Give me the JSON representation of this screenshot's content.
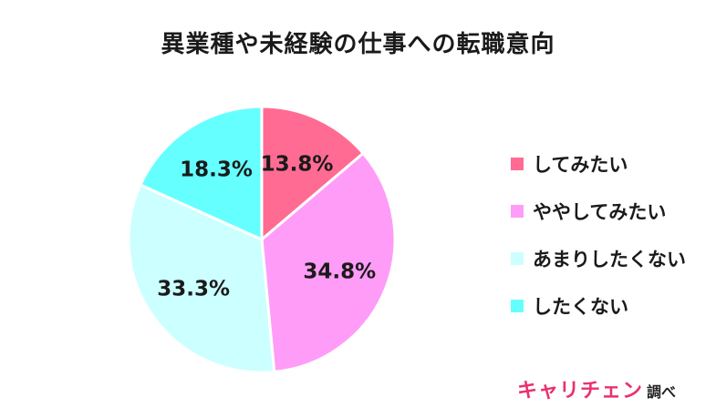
{
  "title": "異業種や未経験の仕事への転職意向",
  "chart_data": {
    "type": "pie",
    "title": "異業種や未経験の仕事への転職意向",
    "categories": [
      "してみたい",
      "ややしてみたい",
      "あまりしたくない",
      "したくない"
    ],
    "values": [
      13.8,
      34.8,
      33.3,
      18.3
    ],
    "value_labels": [
      "13.8%",
      "34.8%",
      "33.3%",
      "18.3%"
    ],
    "colors": [
      "#ff6b93",
      "#ff9cf8",
      "#ccffff",
      "#66ffff"
    ],
    "start": "12 o'clock",
    "direction": "clockwise",
    "legend_position": "right"
  },
  "brand": {
    "logo_text": "キャリチェン",
    "suffix": "調べ",
    "color": "#e8326f"
  }
}
